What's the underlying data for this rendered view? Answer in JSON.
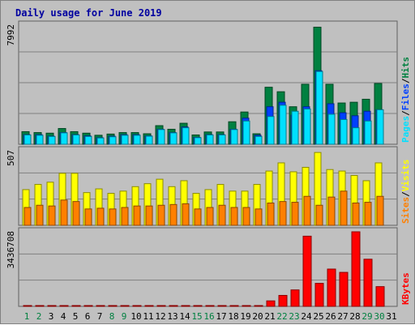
{
  "title": "Daily usage for June 2019",
  "colors": {
    "hits": "#008040",
    "files": "#0040ff",
    "pages": "#00e0ff",
    "visits": "#ffff00",
    "sites": "#ff8000",
    "kbytes": "#ff0000",
    "background": "#c0c0c0",
    "weekend_day": "#008040",
    "weekday_day": "#000000"
  },
  "days": [
    "1",
    "2",
    "3",
    "4",
    "5",
    "6",
    "7",
    "8",
    "9",
    "10",
    "11",
    "12",
    "13",
    "14",
    "15",
    "16",
    "17",
    "18",
    "19",
    "20",
    "21",
    "22",
    "23",
    "24",
    "25",
    "26",
    "27",
    "28",
    "29",
    "30",
    "31"
  ],
  "weekend_days": [
    "1",
    "2",
    "8",
    "9",
    "15",
    "16",
    "22",
    "23",
    "29",
    "30"
  ],
  "chart_data": [
    {
      "type": "bar",
      "name": "hits-files-pages",
      "ymax_label": "7992",
      "ylim": [
        0,
        7992
      ],
      "legend": [
        "Pages",
        "Files",
        "Hits"
      ],
      "series": [
        {
          "name": "Hits",
          "values": [
            840,
            780,
            740,
            1050,
            840,
            740,
            600,
            680,
            780,
            780,
            700,
            1240,
            1000,
            1400,
            620,
            820,
            820,
            1500,
            2150,
            700,
            3800,
            3500,
            2500,
            4000,
            7800,
            4000,
            2750,
            2800,
            3000,
            4050,
            0
          ]
        },
        {
          "name": "Files",
          "values": [
            640,
            640,
            540,
            780,
            640,
            560,
            440,
            540,
            640,
            640,
            560,
            1000,
            780,
            1150,
            460,
            640,
            640,
            1000,
            1740,
            600,
            2500,
            2800,
            1940,
            2500,
            4900,
            2700,
            2100,
            1900,
            2200,
            2300,
            0
          ]
        },
        {
          "name": "Pages",
          "values": [
            620,
            600,
            520,
            760,
            620,
            520,
            420,
            500,
            600,
            600,
            540,
            980,
            760,
            1100,
            440,
            620,
            620,
            980,
            1550,
            520,
            1850,
            2600,
            2200,
            2350,
            4850,
            2000,
            1650,
            1100,
            1550,
            2300,
            0
          ]
        }
      ]
    },
    {
      "type": "bar",
      "name": "visits-sites",
      "ymax_label": "507",
      "ylim": [
        0,
        507
      ],
      "legend": [
        "Sites",
        "Visits"
      ],
      "series": [
        {
          "name": "Visits",
          "values": [
            240,
            275,
            290,
            350,
            350,
            220,
            245,
            215,
            230,
            260,
            280,
            310,
            260,
            300,
            215,
            240,
            275,
            230,
            230,
            275,
            365,
            420,
            360,
            390,
            490,
            375,
            365,
            335,
            300,
            420,
            0
          ]
        },
        {
          "name": "Sites",
          "values": [
            120,
            135,
            130,
            170,
            160,
            110,
            115,
            110,
            120,
            130,
            130,
            135,
            140,
            145,
            110,
            120,
            135,
            120,
            120,
            110,
            150,
            160,
            155,
            195,
            135,
            190,
            230,
            150,
            155,
            195,
            0
          ]
        }
      ]
    },
    {
      "type": "bar",
      "name": "kbytes",
      "ymax_label": "3436708",
      "ylim": [
        0,
        3436708
      ],
      "legend": [
        "KBytes"
      ],
      "series": [
        {
          "name": "KBytes",
          "values": [
            10000,
            10000,
            10000,
            10000,
            10000,
            10000,
            10000,
            10000,
            10000,
            10000,
            10000,
            10000,
            10000,
            10000,
            10000,
            10000,
            10000,
            10000,
            10000,
            10000,
            250000,
            500000,
            750000,
            3200000,
            1050000,
            1700000,
            1550000,
            3400000,
            2150000,
            900000,
            0
          ]
        }
      ]
    }
  ]
}
